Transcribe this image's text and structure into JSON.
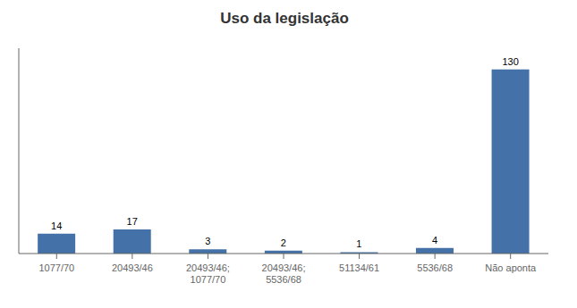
{
  "chart_data": {
    "type": "bar",
    "title": "Uso da legislação",
    "categories": [
      "1077/70",
      "20493/46",
      "20493/46;\n1077/70",
      "20493/46;\n5536/68",
      "51134/61",
      "5536/68",
      "Não aponta"
    ],
    "values": [
      14,
      17,
      3,
      2,
      1,
      4,
      130
    ],
    "color": "#4472a8",
    "ylim": [
      0,
      145
    ],
    "grid": false,
    "data_labels": true,
    "tick_labels": "x"
  }
}
